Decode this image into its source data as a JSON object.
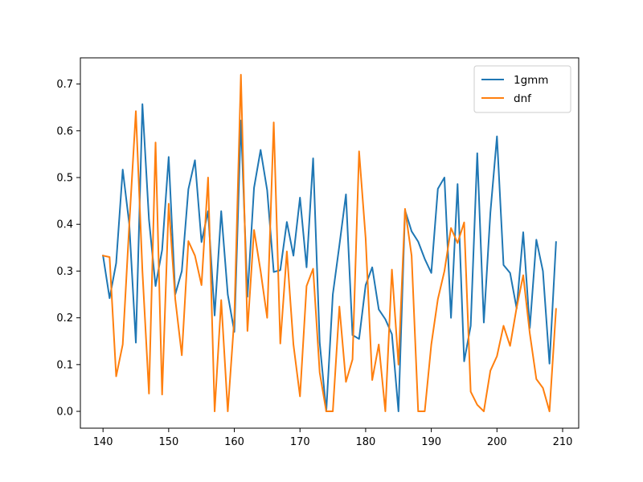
{
  "chart_data": {
    "type": "line",
    "x": [
      140,
      141,
      142,
      143,
      144,
      145,
      146,
      147,
      148,
      149,
      150,
      151,
      152,
      153,
      154,
      155,
      156,
      157,
      158,
      159,
      160,
      161,
      162,
      163,
      164,
      165,
      166,
      167,
      168,
      169,
      170,
      171,
      172,
      173,
      174,
      175,
      176,
      177,
      178,
      179,
      180,
      181,
      182,
      183,
      184,
      185,
      186,
      187,
      188,
      189,
      190,
      191,
      192,
      193,
      194,
      195,
      196,
      197,
      198,
      199,
      200,
      201,
      202,
      203,
      204,
      205,
      206,
      207,
      208,
      209
    ],
    "series": [
      {
        "name": "1gmm",
        "color": "#1f77b4",
        "values": [
          0.333,
          0.242,
          0.317,
          0.517,
          0.4,
          0.147,
          0.657,
          0.41,
          0.268,
          0.345,
          0.544,
          0.25,
          0.3,
          0.475,
          0.537,
          0.362,
          0.428,
          0.205,
          0.428,
          0.25,
          0.17,
          0.622,
          0.245,
          0.478,
          0.559,
          0.473,
          0.298,
          0.302,
          0.405,
          0.333,
          0.457,
          0.308,
          0.541,
          0.147,
          0.0,
          0.25,
          0.355,
          0.464,
          0.163,
          0.155,
          0.27,
          0.308,
          0.218,
          0.197,
          0.165,
          0.0,
          0.43,
          0.385,
          0.363,
          0.326,
          0.296,
          0.476,
          0.5,
          0.2,
          0.486,
          0.107,
          0.183,
          0.552,
          0.19,
          0.425,
          0.588,
          0.313,
          0.296,
          0.22,
          0.383,
          0.178,
          0.367,
          0.3,
          0.102,
          0.362
        ]
      },
      {
        "name": "dnf",
        "color": "#ff7f0e",
        "values": [
          0.333,
          0.33,
          0.075,
          0.143,
          0.4,
          0.642,
          0.3,
          0.038,
          0.575,
          0.036,
          0.444,
          0.24,
          0.12,
          0.364,
          0.333,
          0.27,
          0.5,
          0.0,
          0.238,
          0.0,
          0.2,
          0.72,
          0.172,
          0.388,
          0.3,
          0.2,
          0.618,
          0.145,
          0.342,
          0.143,
          0.032,
          0.268,
          0.305,
          0.083,
          0.0,
          0.0,
          0.224,
          0.063,
          0.111,
          0.556,
          0.37,
          0.067,
          0.143,
          0.0,
          0.303,
          0.1,
          0.433,
          0.333,
          0.0,
          0.0,
          0.143,
          0.24,
          0.3,
          0.392,
          0.36,
          0.404,
          0.042,
          0.014,
          0.0,
          0.087,
          0.118,
          0.183,
          0.14,
          0.222,
          0.291,
          0.167,
          0.069,
          0.05,
          0.0,
          0.219
        ]
      }
    ],
    "xlim": [
      136.55,
      212.45
    ],
    "ylim": [
      -0.036,
      0.756
    ],
    "xticks": [
      140,
      150,
      160,
      170,
      180,
      190,
      200,
      210
    ],
    "xtick_labels": [
      "140",
      "150",
      "160",
      "170",
      "180",
      "190",
      "200",
      "210"
    ],
    "yticks": [
      0.0,
      0.1,
      0.2,
      0.3,
      0.4,
      0.5,
      0.6,
      0.7
    ],
    "ytick_labels": [
      "0.0",
      "0.1",
      "0.2",
      "0.3",
      "0.4",
      "0.5",
      "0.6",
      "0.7"
    ],
    "grid": false,
    "legend": "top-right"
  }
}
